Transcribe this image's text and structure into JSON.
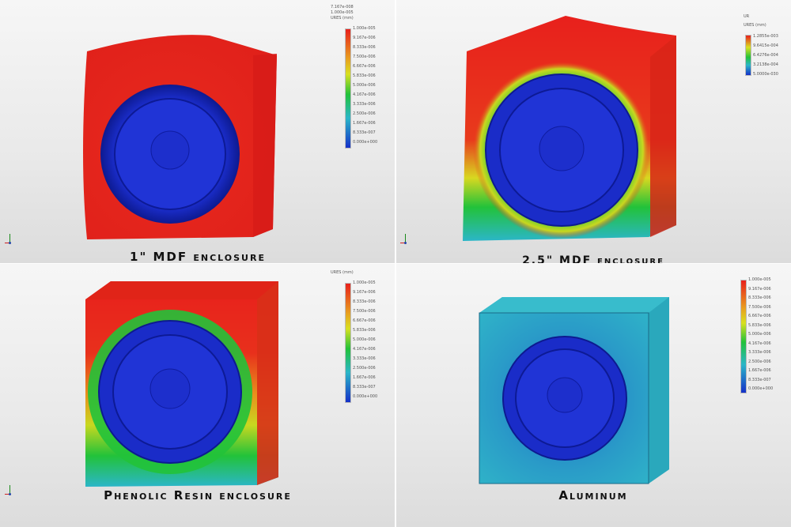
{
  "colors": {
    "red": "#e8201c",
    "green": "#22c23a",
    "cyan": "#2bb6c8",
    "blue": "#1530c8",
    "speaker_blue": "#1a2fd0"
  },
  "panels": [
    {
      "caption": "1\" MDF enclosure",
      "legend": {
        "header": [
          "7.167e-008",
          "1.000e-005"
        ],
        "title": "URES (mm)",
        "ticks": [
          "1.000e-005",
          "9.167e-006",
          "8.333e-006",
          "7.500e-006",
          "6.667e-006",
          "5.833e-006",
          "5.000e-006",
          "4.167e-006",
          "3.333e-006",
          "2.500e-006",
          "1.667e-006",
          "8.333e-007",
          "0.000e+000"
        ]
      }
    },
    {
      "caption": "2.5\" MDF enclosure",
      "legend": {
        "header": [
          "UR"
        ],
        "title": "URES (mm)",
        "ticks": [
          "1.2855e-003",
          "9.6415e-004",
          "6.4276e-004",
          "3.2138e-004",
          "5.0000e-030"
        ]
      }
    },
    {
      "caption": "Phenolic Resin  enclosure",
      "legend": {
        "header": [],
        "title": "URES (mm)",
        "ticks": [
          "1.000e-005",
          "9.167e-006",
          "8.333e-006",
          "7.500e-006",
          "6.667e-006",
          "5.833e-006",
          "5.000e-006",
          "4.167e-006",
          "3.333e-006",
          "2.500e-006",
          "1.667e-006",
          "8.333e-007",
          "0.000e+000"
        ]
      }
    },
    {
      "caption": "Aluminum",
      "legend": {
        "header": [],
        "title": "",
        "ticks": [
          "1.000e-005",
          "9.167e-006",
          "8.333e-006",
          "7.500e-006",
          "6.667e-006",
          "5.833e-006",
          "5.000e-006",
          "4.167e-006",
          "3.333e-006",
          "2.500e-006",
          "1.667e-006",
          "8.333e-007",
          "0.000e+000"
        ]
      }
    }
  ]
}
